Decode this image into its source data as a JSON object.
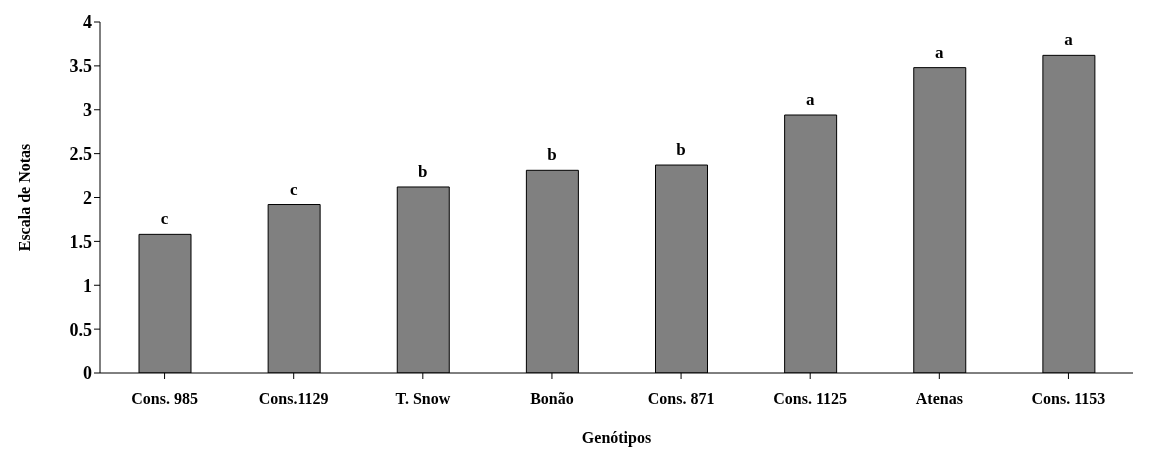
{
  "chart_data": {
    "type": "bar",
    "xlabel": "Genótipos",
    "ylabel": "Escala de Notas",
    "categories": [
      "Cons. 985",
      "Cons.1129",
      "T. Snow",
      "Bonão",
      "Cons. 871",
      "Cons. 1125",
      "Atenas",
      "Cons. 1153"
    ],
    "values": [
      1.58,
      1.92,
      2.12,
      2.31,
      2.37,
      2.94,
      3.48,
      3.62
    ],
    "color": "#808080",
    "ylim": [
      0,
      4
    ],
    "yticks": [
      0,
      0.5,
      1,
      1.5,
      2,
      2.5,
      3,
      3.5,
      4
    ],
    "grid": false,
    "legend": false,
    "annotations": [
      {
        "text": "c",
        "x": "Cons. 985",
        "y": 1.58
      },
      {
        "text": "c",
        "x": "Cons.1129",
        "y": 1.92
      },
      {
        "text": "b",
        "x": "T. Snow",
        "y": 2.12
      },
      {
        "text": "b",
        "x": "Bonão",
        "y": 2.31
      },
      {
        "text": "b",
        "x": "Cons. 871",
        "y": 2.37
      },
      {
        "text": "a",
        "x": "Cons. 1125",
        "y": 2.94
      },
      {
        "text": "a",
        "x": "Atenas",
        "y": 3.48
      },
      {
        "text": "a",
        "x": "Cons. 1153",
        "y": 3.62
      }
    ]
  }
}
